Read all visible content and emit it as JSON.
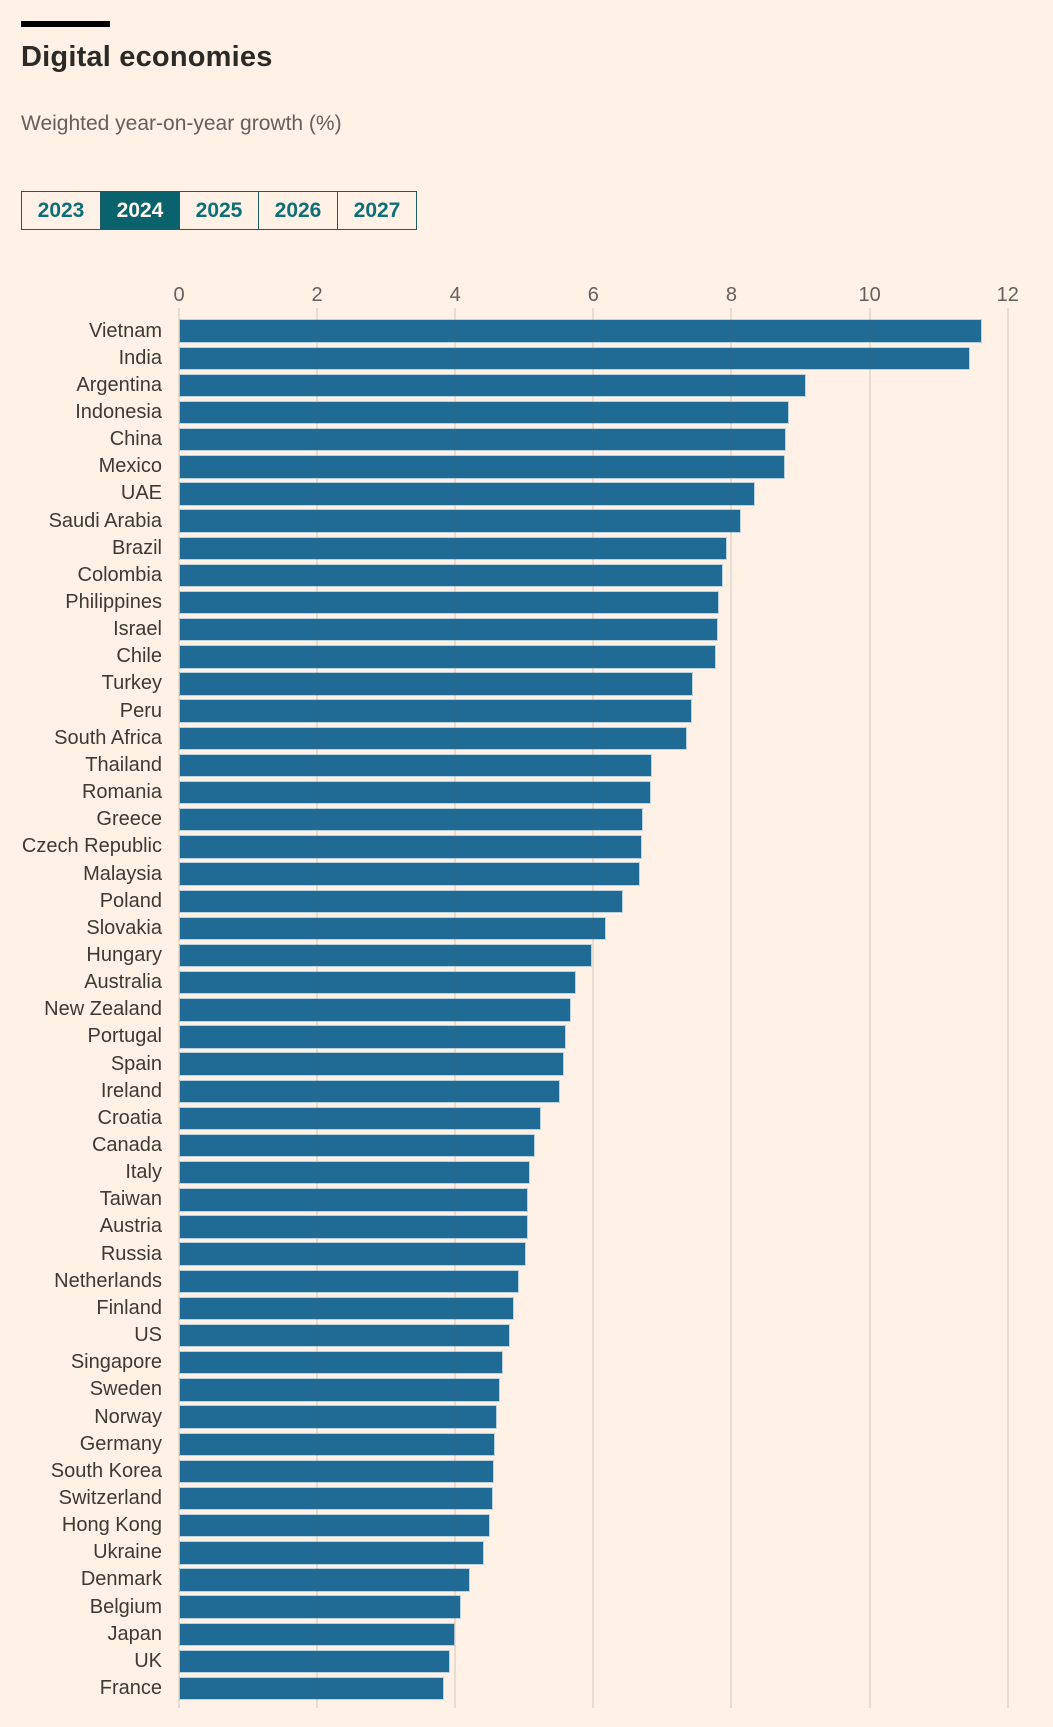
{
  "header": {
    "title": "Digital economies",
    "subtitle": "Weighted year-on-year growth (%)"
  },
  "tabs": {
    "items": [
      {
        "label": "2023",
        "active": false
      },
      {
        "label": "2024",
        "active": true
      },
      {
        "label": "2025",
        "active": false
      },
      {
        "label": "2026",
        "active": false
      },
      {
        "label": "2027",
        "active": false
      }
    ]
  },
  "colors": {
    "background": "#FFF1E5",
    "bar": "#1F6B95",
    "tab_text": "#0D6E78",
    "tab_border": "#1D5A63",
    "tab_active_bg": "#0A626D",
    "tab_active_text": "#FFF8F0",
    "title_rule": "#000000",
    "axis_text": "#66605C",
    "category_text": "#3E3A33"
  },
  "chart_data": {
    "type": "bar",
    "orientation": "horizontal",
    "title": "Digital economies",
    "subtitle": "Weighted year-on-year growth (%)",
    "xlabel": "",
    "ylabel": "",
    "xlim": [
      0,
      12
    ],
    "x_ticks": [
      0,
      2,
      4,
      6,
      8,
      10,
      12
    ],
    "grid": true,
    "legend": false,
    "selected_series": "2024",
    "categories": [
      "Vietnam",
      "India",
      "Argentina",
      "Indonesia",
      "China",
      "Mexico",
      "UAE",
      "Saudi Arabia",
      "Brazil",
      "Colombia",
      "Philippines",
      "Israel",
      "Chile",
      "Turkey",
      "Peru",
      "South Africa",
      "Thailand",
      "Romania",
      "Greece",
      "Czech Republic",
      "Malaysia",
      "Poland",
      "Slovakia",
      "Hungary",
      "Australia",
      "New Zealand",
      "Portugal",
      "Spain",
      "Ireland",
      "Croatia",
      "Canada",
      "Italy",
      "Taiwan",
      "Austria",
      "Russia",
      "Netherlands",
      "Finland",
      "US",
      "Singapore",
      "Sweden",
      "Norway",
      "Germany",
      "South Korea",
      "Switzerland",
      "Hong Kong",
      "Ukraine",
      "Denmark",
      "Belgium",
      "Japan",
      "UK",
      "France"
    ],
    "values": [
      11.63,
      11.46,
      9.08,
      8.84,
      8.79,
      8.77,
      8.34,
      8.14,
      7.94,
      7.87,
      7.82,
      7.8,
      7.78,
      7.45,
      7.43,
      7.36,
      6.85,
      6.83,
      6.72,
      6.7,
      6.67,
      6.43,
      6.19,
      5.98,
      5.75,
      5.68,
      5.61,
      5.57,
      5.52,
      5.24,
      5.16,
      5.08,
      5.06,
      5.05,
      5.02,
      4.92,
      4.85,
      4.8,
      4.69,
      4.65,
      4.61,
      4.58,
      4.56,
      4.54,
      4.5,
      4.42,
      4.21,
      4.09,
      4.0,
      3.93,
      3.84
    ]
  }
}
